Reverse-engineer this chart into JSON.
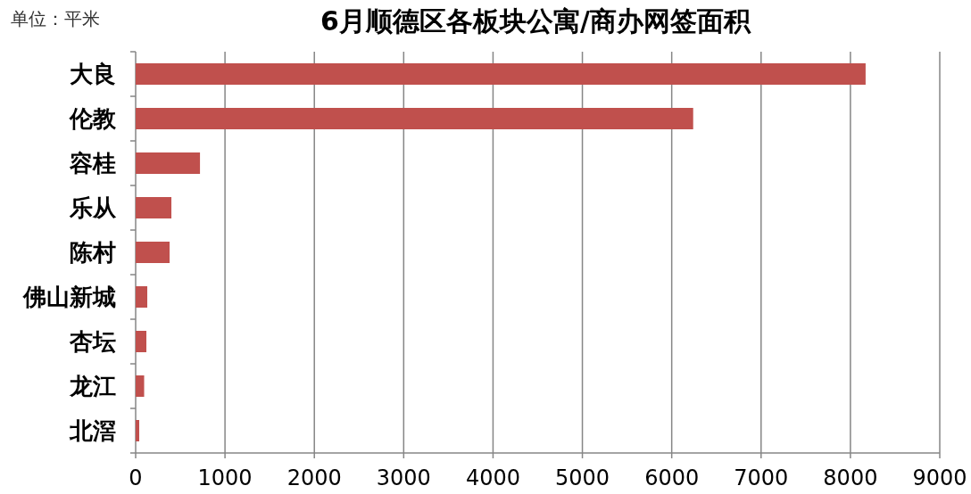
{
  "chart_data": {
    "type": "bar",
    "orientation": "horizontal",
    "title": "6月顺德区各板块公寓/商办网签面积",
    "annotations": [
      "单位：平米"
    ],
    "categories": [
      "大良",
      "伦教",
      "容桂",
      "乐从",
      "陈村",
      "佛山新城",
      "杏坛",
      "龙江",
      "北滘"
    ],
    "values": [
      8170,
      6240,
      720,
      400,
      380,
      130,
      120,
      95,
      40
    ],
    "color": "#c0504d",
    "xlim": [
      0,
      9000
    ],
    "xticks": [
      0,
      1000,
      2000,
      3000,
      4000,
      5000,
      6000,
      7000,
      8000,
      9000
    ],
    "grid": "x"
  }
}
